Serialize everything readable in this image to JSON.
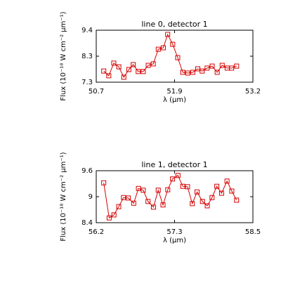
{
  "chart_data": [
    {
      "type": "line",
      "title": "line 0, detector 1",
      "x_label": "λ (μm)",
      "y_label": "Flux (10⁻¹⁸ W cm⁻² μm⁻¹)",
      "color": "#d40000",
      "marker": "square",
      "x": [
        50.82,
        50.9,
        50.98,
        51.06,
        51.14,
        51.22,
        51.29,
        51.37,
        51.45,
        51.53,
        51.61,
        51.69,
        51.77,
        51.84,
        51.92,
        52.0,
        52.08,
        52.16,
        52.24,
        52.32,
        52.39,
        52.47,
        52.55,
        52.63,
        52.71,
        52.79,
        52.86,
        52.94
      ],
      "values": [
        7.75,
        7.56,
        8.07,
        7.92,
        7.5,
        7.81,
        8.01,
        7.73,
        7.73,
        7.98,
        8.04,
        8.63,
        8.69,
        9.23,
        8.83,
        8.29,
        7.7,
        7.67,
        7.7,
        7.84,
        7.75,
        7.87,
        7.95,
        7.7,
        7.98,
        7.87,
        7.87,
        7.95
      ],
      "xlim": [
        50.7,
        53.2
      ],
      "xticks": [
        50.7,
        {
          "value": 51.95,
          "label": "51.9"
        },
        53.2
      ],
      "ylim": [
        7.3,
        9.4
      ],
      "yticks": [
        7.3,
        {
          "value": 8.35,
          "label": "8.3"
        },
        9.4
      ],
      "grid": false
    },
    {
      "type": "line",
      "title": "line 1, detector 1",
      "x_label": "λ (μm)",
      "y_label": "Flux (10⁻¹⁸ W cm⁻² μm⁻¹)",
      "color": "#d40000",
      "marker": "square",
      "x": [
        56.31,
        56.39,
        56.46,
        56.53,
        56.6,
        56.67,
        56.75,
        56.82,
        56.89,
        56.96,
        57.04,
        57.11,
        57.18,
        57.25,
        57.32,
        57.4,
        57.47,
        57.54,
        57.61,
        57.68,
        57.76,
        57.83,
        57.9,
        57.97,
        58.04,
        58.12,
        58.19,
        58.26
      ],
      "values": [
        9.32,
        8.51,
        8.58,
        8.77,
        8.98,
        8.97,
        8.85,
        9.19,
        9.15,
        8.89,
        8.76,
        9.15,
        8.81,
        9.16,
        9.41,
        9.49,
        9.24,
        9.23,
        8.84,
        9.11,
        8.89,
        8.79,
        8.98,
        9.24,
        9.08,
        9.36,
        9.13,
        8.92
      ],
      "xlim": [
        56.2,
        58.5
      ],
      "xticks": [
        56.2,
        {
          "value": 57.35,
          "label": "57.3"
        },
        58.5
      ],
      "ylim": [
        8.4,
        9.6
      ],
      "yticks": [
        8.4,
        9.0,
        9.6
      ],
      "grid": false
    }
  ]
}
